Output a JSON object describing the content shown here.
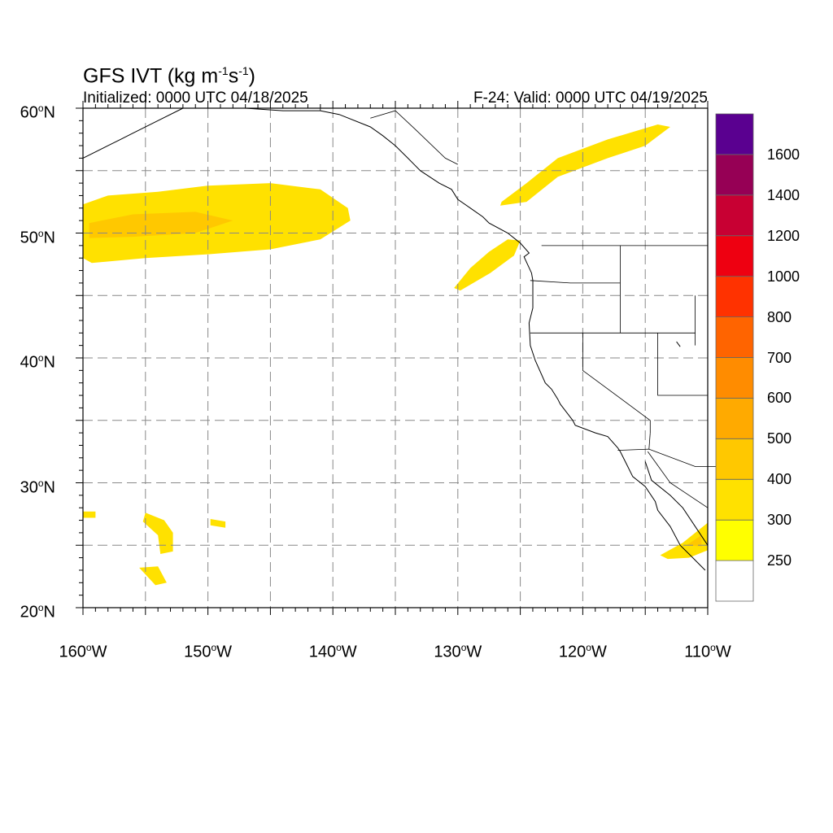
{
  "header": {
    "title_main": "GFS IVT (kg m",
    "title_sup1": "-1",
    "title_mid": "s",
    "title_sup2": "-1",
    "title_end": ")",
    "initialized": "Initialized: 0000 UTC 04/18/2025",
    "valid": "F-24: Valid: 0000 UTC 04/19/2025"
  },
  "axes": {
    "y_ticks": [
      {
        "num": "60",
        "deg": "o",
        "hemi": "N"
      },
      {
        "num": "50",
        "deg": "o",
        "hemi": "N"
      },
      {
        "num": "40",
        "deg": "o",
        "hemi": "N"
      },
      {
        "num": "30",
        "deg": "o",
        "hemi": "N"
      },
      {
        "num": "20",
        "deg": "o",
        "hemi": "N"
      }
    ],
    "x_ticks": [
      {
        "num": "160",
        "deg": "o",
        "hemi": "W"
      },
      {
        "num": "150",
        "deg": "o",
        "hemi": "W"
      },
      {
        "num": "140",
        "deg": "o",
        "hemi": "W"
      },
      {
        "num": "130",
        "deg": "o",
        "hemi": "W"
      },
      {
        "num": "120",
        "deg": "o",
        "hemi": "W"
      },
      {
        "num": "110",
        "deg": "o",
        "hemi": "W"
      }
    ]
  },
  "map": {
    "lon_range": [
      -160,
      -110
    ],
    "lat_range": [
      20,
      60
    ],
    "grid_lines": "dashed",
    "ivt_regions": [
      {
        "name": "north-pacific-plume",
        "color": "#ffe100",
        "poly": [
          [
            -160,
            52.3
          ],
          [
            -158,
            53
          ],
          [
            -154,
            53.3
          ],
          [
            -150,
            53.8
          ],
          [
            -145,
            54
          ],
          [
            -141,
            53.5
          ],
          [
            -138.8,
            52
          ],
          [
            -138.6,
            51
          ],
          [
            -141,
            49.5
          ],
          [
            -145,
            48.7
          ],
          [
            -150,
            48.3
          ],
          [
            -155,
            48
          ],
          [
            -159.3,
            47.6
          ],
          [
            -160,
            48
          ]
        ]
      },
      {
        "name": "north-pacific-core",
        "color": "#ffc800",
        "poly": [
          [
            -159.5,
            50.8
          ],
          [
            -156,
            51.5
          ],
          [
            -151,
            51.7
          ],
          [
            -148,
            51
          ],
          [
            -151,
            50
          ],
          [
            -156,
            49.7
          ],
          [
            -159.5,
            49.6
          ]
        ]
      },
      {
        "name": "pacific-northwest-plume",
        "color": "#ffe100",
        "poly": [
          [
            -130.3,
            45.6
          ],
          [
            -129,
            47.2
          ],
          [
            -127.5,
            48.5
          ],
          [
            -126,
            49.5
          ],
          [
            -125,
            49.4
          ],
          [
            -125.5,
            48.2
          ],
          [
            -127.4,
            46.8
          ],
          [
            -129.8,
            45.4
          ]
        ]
      },
      {
        "name": "british-columbia-plume",
        "color": "#ffe100",
        "poly": [
          [
            -126.5,
            52.5
          ],
          [
            -124.5,
            54
          ],
          [
            -122,
            56
          ],
          [
            -118,
            57.5
          ],
          [
            -114,
            58.7
          ],
          [
            -113,
            58.5
          ],
          [
            -115,
            57
          ],
          [
            -118,
            56
          ],
          [
            -122,
            54.5
          ],
          [
            -124.5,
            52.5
          ],
          [
            -126.6,
            52.2
          ]
        ]
      },
      {
        "name": "subtropical-patch-1",
        "color": "#ffe100",
        "poly": [
          [
            -155,
            27.6
          ],
          [
            -153.5,
            27
          ],
          [
            -152.8,
            26
          ],
          [
            -152.8,
            24.5
          ],
          [
            -153.8,
            24.3
          ],
          [
            -154,
            25.8
          ],
          [
            -155.2,
            26.9
          ]
        ]
      },
      {
        "name": "subtropical-patch-2",
        "color": "#ffe100",
        "poly": [
          [
            -160,
            27.7
          ],
          [
            -159,
            27.7
          ],
          [
            -159,
            27.2
          ],
          [
            -160,
            27.2
          ]
        ]
      },
      {
        "name": "subtropical-patch-3",
        "color": "#ffe100",
        "poly": [
          [
            -149.8,
            27.1
          ],
          [
            -148.6,
            26.9
          ],
          [
            -148.6,
            26.4
          ],
          [
            -149.8,
            26.6
          ]
        ]
      },
      {
        "name": "subtropical-patch-4",
        "color": "#ffe100",
        "poly": [
          [
            -155.5,
            23.2
          ],
          [
            -154,
            23.3
          ],
          [
            -153.3,
            22
          ],
          [
            -154.2,
            21.8
          ]
        ]
      },
      {
        "name": "gulf-of-california-plume",
        "color": "#ffe100",
        "poly": [
          [
            -113.8,
            24.2
          ],
          [
            -112,
            25.2
          ],
          [
            -110,
            26.8
          ],
          [
            -110,
            24.6
          ],
          [
            -111.5,
            24
          ],
          [
            -113.2,
            23.9
          ]
        ]
      },
      {
        "name": "gulf-of-california-core",
        "color": "#ffc800",
        "poly": [
          [
            -111.7,
            25
          ],
          [
            -110.5,
            25.8
          ],
          [
            -110.5,
            24.9
          ]
        ]
      }
    ],
    "coastlines": [
      [
        [
          -160,
          56
        ],
        [
          -158,
          57
        ],
        [
          -157,
          57.5
        ],
        [
          -156,
          58
        ],
        [
          -154,
          59
        ],
        [
          -152,
          60
        ]
      ],
      [
        [
          -147,
          60
        ],
        [
          -144,
          59.8
        ],
        [
          -141,
          59.8
        ],
        [
          -139.5,
          59.5
        ],
        [
          -137,
          58.5
        ],
        [
          -136,
          57.8
        ],
        [
          -135,
          57
        ],
        [
          -134,
          56
        ],
        [
          -133,
          55
        ],
        [
          -131.5,
          54
        ],
        [
          -130.5,
          53.5
        ],
        [
          -130,
          52.7
        ],
        [
          -129,
          52
        ],
        [
          -128,
          51.3
        ],
        [
          -127.5,
          50.8
        ],
        [
          -126,
          50
        ],
        [
          -125,
          49.2
        ],
        [
          -124.3,
          48.4
        ],
        [
          -124.7,
          48.1
        ],
        [
          -124.1,
          46.8
        ],
        [
          -124,
          46.2
        ],
        [
          -124,
          44
        ],
        [
          -124.3,
          42.8
        ],
        [
          -124.2,
          41
        ],
        [
          -123.8,
          39.8
        ],
        [
          -123,
          38
        ],
        [
          -122.5,
          37.5
        ],
        [
          -122,
          36.7
        ],
        [
          -121.8,
          36.3
        ],
        [
          -120.8,
          35
        ],
        [
          -120.6,
          34.6
        ],
        [
          -119,
          34
        ],
        [
          -118,
          33.7
        ],
        [
          -117.2,
          32.8
        ],
        [
          -117,
          32.5
        ],
        [
          -116.5,
          31.5
        ],
        [
          -116,
          30.5
        ],
        [
          -115,
          29.7
        ],
        [
          -114.2,
          28.5
        ],
        [
          -114,
          27.8
        ],
        [
          -113,
          26.5
        ],
        [
          -112.2,
          25
        ],
        [
          -111.2,
          24
        ],
        [
          -110.2,
          23
        ]
      ],
      [
        [
          -115,
          31.7
        ],
        [
          -114.5,
          30.2
        ],
        [
          -113,
          29
        ],
        [
          -112,
          28
        ],
        [
          -111,
          26.5
        ],
        [
          -110,
          25
        ]
      ]
    ],
    "borders": [
      [
        [
          -141,
          60
        ],
        [
          -141,
          59.8
        ]
      ],
      [
        [
          -137,
          59.2
        ],
        [
          -135,
          59.8
        ],
        [
          -133.5,
          58.4
        ],
        [
          -131,
          56
        ],
        [
          -130,
          55.5
        ]
      ],
      [
        [
          -123.3,
          49
        ],
        [
          -110,
          49
        ]
      ],
      [
        [
          -124.2,
          46.2
        ],
        [
          -121,
          46
        ],
        [
          -117,
          46
        ]
      ],
      [
        [
          -117,
          49
        ],
        [
          -117,
          44.3
        ],
        [
          -117,
          42
        ]
      ],
      [
        [
          -124.2,
          42
        ],
        [
          -111,
          42
        ]
      ],
      [
        [
          -120,
          42
        ],
        [
          -120,
          39
        ],
        [
          -114.6,
          35
        ],
        [
          -114.6,
          34
        ]
      ],
      [
        [
          -117.2,
          32.6
        ],
        [
          -114.7,
          32.7
        ],
        [
          -111,
          31.3
        ],
        [
          -108,
          31.3
        ]
      ],
      [
        [
          -114.6,
          34
        ],
        [
          -114.7,
          32.7
        ]
      ],
      [
        [
          -111,
          45
        ],
        [
          -111,
          41
        ]
      ],
      [
        [
          -114,
          42
        ],
        [
          -114,
          37
        ],
        [
          -110,
          37
        ]
      ],
      [
        [
          -114.8,
          32.5
        ],
        [
          -113,
          30
        ],
        [
          -110,
          28
        ]
      ]
    ],
    "lakes": [
      [
        -112.5,
        41.3
      ],
      [
        -112.2,
        40.9
      ]
    ]
  },
  "colorbar": {
    "colors": [
      "#ffffff",
      "#ffff00",
      "#ffe100",
      "#ffc800",
      "#ffaa00",
      "#ff8c00",
      "#ff6400",
      "#ff3200",
      "#ee0011",
      "#c80033",
      "#960055",
      "#5a0090"
    ],
    "labels": [
      "250",
      "300",
      "400",
      "500",
      "600",
      "700",
      "800",
      "1000",
      "1200",
      "1400",
      "1600"
    ]
  }
}
